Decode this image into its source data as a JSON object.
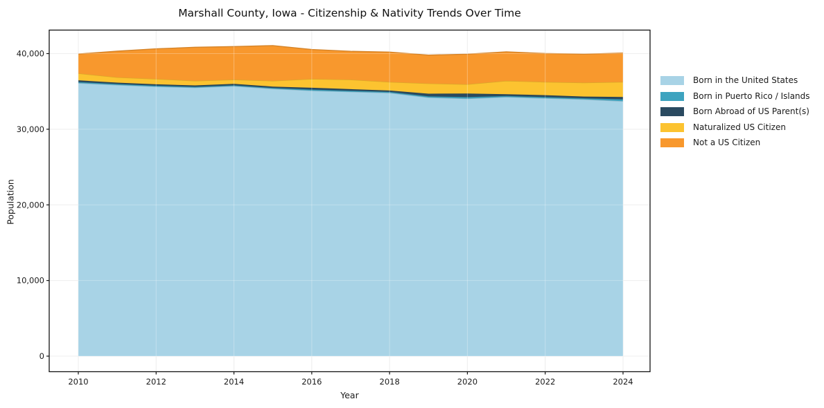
{
  "chart_data": {
    "type": "area",
    "stacked": true,
    "title": "Marshall County, Iowa - Citizenship & Nativity Trends Over Time",
    "xlabel": "Year",
    "ylabel": "Population",
    "grid": true,
    "legend_position": "right-outside",
    "x": [
      2010,
      2011,
      2012,
      2013,
      2014,
      2015,
      2016,
      2017,
      2018,
      2019,
      2020,
      2021,
      2022,
      2023,
      2024
    ],
    "series": [
      {
        "name": "Born in the United States",
        "color": "#a8d3e6",
        "values": [
          36100,
          35850,
          35640,
          35500,
          35700,
          35350,
          35100,
          34950,
          34810,
          34200,
          34050,
          34260,
          34100,
          33950,
          33710
        ]
      },
      {
        "name": "Born in Puerto Rico / Islands",
        "color": "#3da3bf",
        "values": [
          140,
          130,
          120,
          110,
          110,
          110,
          150,
          140,
          130,
          150,
          200,
          140,
          150,
          140,
          250
        ]
      },
      {
        "name": "Born Abroad of US Parent(s)",
        "color": "#2a4a60",
        "values": [
          225,
          180,
          180,
          180,
          190,
          180,
          240,
          210,
          180,
          350,
          470,
          230,
          250,
          230,
          300
        ]
      },
      {
        "name": "Naturalized US Citizen",
        "color": "#fcc330",
        "values": [
          920,
          700,
          710,
          610,
          560,
          760,
          1160,
          1250,
          1130,
          1350,
          1220,
          1770,
          1750,
          1840,
          1990
        ]
      },
      {
        "name": "Not a US Citizen",
        "color": "#f8982d",
        "values": [
          2560,
          3460,
          3980,
          4440,
          4370,
          4660,
          3890,
          3750,
          3950,
          3750,
          3990,
          3830,
          3770,
          3770,
          3825
        ]
      }
    ],
    "x_ticks": [
      2010,
      2012,
      2014,
      2016,
      2018,
      2020,
      2022,
      2024
    ],
    "x_tick_labels": [
      "2010",
      "2012",
      "2014",
      "2016",
      "2018",
      "2020",
      "2022",
      "2024"
    ],
    "y_ticks": [
      0,
      10000,
      20000,
      30000,
      40000
    ],
    "y_tick_labels": [
      "0",
      "10,000",
      "20,000",
      "30,000",
      "40,000"
    ],
    "x_axis_range": [
      2009.25,
      2024.7
    ],
    "y_axis_range": [
      -2060,
      43110
    ],
    "colors": {
      "gridline": "#e9e9e9",
      "frame": "#111111",
      "text": "#1a1a1a",
      "background": "#ffffff"
    }
  }
}
